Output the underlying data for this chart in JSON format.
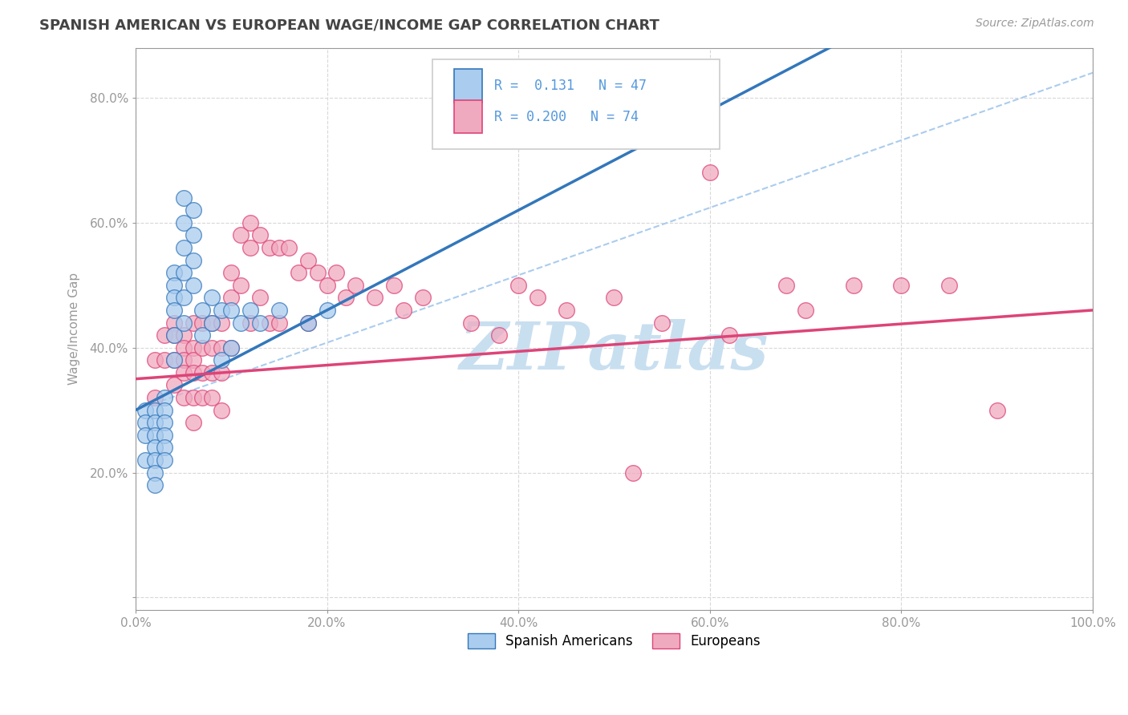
{
  "title": "SPANISH AMERICAN VS EUROPEAN WAGE/INCOME GAP CORRELATION CHART",
  "source": "Source: ZipAtlas.com",
  "ylabel": "Wage/Income Gap",
  "xlim": [
    0.0,
    1.0
  ],
  "ylim": [
    -0.02,
    0.88
  ],
  "xticks": [
    0.0,
    0.2,
    0.4,
    0.6,
    0.8,
    1.0
  ],
  "xtick_labels": [
    "0.0%",
    "20.0%",
    "40.0%",
    "60.0%",
    "80.0%",
    "100.0%"
  ],
  "yticks": [
    0.0,
    0.2,
    0.4,
    0.6,
    0.8
  ],
  "ytick_labels": [
    "",
    "20.0%",
    "40.0%",
    "60.0%",
    "80.0%"
  ],
  "background_color": "#ffffff",
  "grid_color": "#d8d8d8",
  "title_color": "#444444",
  "axis_color": "#999999",
  "tick_color": "#5599dd",
  "watermark_text": "ZIPatlas",
  "watermark_color": "#c8dff0",
  "legend_label1": "Spanish Americans",
  "legend_label2": "Europeans",
  "scatter_color1": "#aaccee",
  "scatter_color2": "#f0aac0",
  "line_color1": "#3377bb",
  "line_color2": "#dd4477",
  "dash_line_color": "#aaccee",
  "R1": 0.131,
  "N1": 47,
  "R2": 0.2,
  "N2": 74,
  "spanish_x": [
    0.01,
    0.01,
    0.01,
    0.01,
    0.02,
    0.02,
    0.02,
    0.02,
    0.02,
    0.02,
    0.02,
    0.03,
    0.03,
    0.03,
    0.03,
    0.03,
    0.03,
    0.04,
    0.04,
    0.04,
    0.04,
    0.04,
    0.04,
    0.05,
    0.05,
    0.05,
    0.05,
    0.05,
    0.05,
    0.06,
    0.06,
    0.06,
    0.06,
    0.07,
    0.07,
    0.08,
    0.08,
    0.09,
    0.09,
    0.1,
    0.1,
    0.11,
    0.12,
    0.13,
    0.15,
    0.18,
    0.2
  ],
  "spanish_y": [
    0.3,
    0.28,
    0.26,
    0.22,
    0.3,
    0.28,
    0.26,
    0.24,
    0.22,
    0.2,
    0.18,
    0.32,
    0.3,
    0.28,
    0.26,
    0.24,
    0.22,
    0.52,
    0.5,
    0.48,
    0.46,
    0.42,
    0.38,
    0.64,
    0.6,
    0.56,
    0.52,
    0.48,
    0.44,
    0.62,
    0.58,
    0.54,
    0.5,
    0.46,
    0.42,
    0.48,
    0.44,
    0.46,
    0.38,
    0.46,
    0.4,
    0.44,
    0.46,
    0.44,
    0.46,
    0.44,
    0.46
  ],
  "european_x": [
    0.02,
    0.02,
    0.03,
    0.03,
    0.04,
    0.04,
    0.04,
    0.04,
    0.05,
    0.05,
    0.05,
    0.05,
    0.05,
    0.06,
    0.06,
    0.06,
    0.06,
    0.06,
    0.06,
    0.07,
    0.07,
    0.07,
    0.07,
    0.08,
    0.08,
    0.08,
    0.08,
    0.09,
    0.09,
    0.09,
    0.09,
    0.1,
    0.1,
    0.1,
    0.11,
    0.11,
    0.12,
    0.12,
    0.12,
    0.13,
    0.13,
    0.14,
    0.14,
    0.15,
    0.15,
    0.16,
    0.17,
    0.18,
    0.18,
    0.19,
    0.2,
    0.21,
    0.22,
    0.23,
    0.25,
    0.27,
    0.28,
    0.3,
    0.35,
    0.38,
    0.4,
    0.42,
    0.45,
    0.5,
    0.52,
    0.55,
    0.6,
    0.62,
    0.68,
    0.7,
    0.75,
    0.8,
    0.85,
    0.9
  ],
  "european_y": [
    0.38,
    0.32,
    0.42,
    0.38,
    0.44,
    0.42,
    0.38,
    0.34,
    0.42,
    0.4,
    0.38,
    0.36,
    0.32,
    0.44,
    0.4,
    0.38,
    0.36,
    0.32,
    0.28,
    0.44,
    0.4,
    0.36,
    0.32,
    0.44,
    0.4,
    0.36,
    0.32,
    0.44,
    0.4,
    0.36,
    0.3,
    0.52,
    0.48,
    0.4,
    0.58,
    0.5,
    0.6,
    0.56,
    0.44,
    0.58,
    0.48,
    0.56,
    0.44,
    0.56,
    0.44,
    0.56,
    0.52,
    0.54,
    0.44,
    0.52,
    0.5,
    0.52,
    0.48,
    0.5,
    0.48,
    0.5,
    0.46,
    0.48,
    0.44,
    0.42,
    0.5,
    0.48,
    0.46,
    0.48,
    0.2,
    0.44,
    0.68,
    0.42,
    0.5,
    0.46,
    0.5,
    0.5,
    0.5,
    0.3
  ]
}
